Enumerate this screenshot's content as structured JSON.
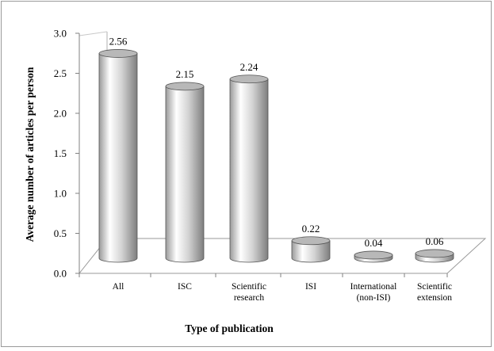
{
  "chart_data": {
    "type": "bar",
    "title": "",
    "xlabel": "Type of publication",
    "ylabel": "Average number of articles per person",
    "categories": [
      [
        "All"
      ],
      [
        "ISC"
      ],
      [
        "Scientific",
        "research"
      ],
      [
        "ISI"
      ],
      [
        "International",
        "(non-ISI)"
      ],
      [
        "Scientific",
        "extension"
      ]
    ],
    "values": [
      2.56,
      2.15,
      2.24,
      0.22,
      0.04,
      0.06
    ],
    "data_labels": [
      "2.56",
      "2.15",
      "2.24",
      "0.22",
      "0.04",
      "0.06"
    ],
    "ylim": [
      0,
      3.0
    ],
    "yticks": [
      "0.0",
      "0.5",
      "1.0",
      "1.5",
      "2.0",
      "2.5",
      "3.0"
    ],
    "style": "3d-cylinder",
    "grid": false,
    "legend": "none",
    "colors": {
      "bar_light": "#ffffff",
      "bar_dark": "#8c8c8c",
      "top": "#b8b8b8",
      "axis": "#808080"
    }
  }
}
